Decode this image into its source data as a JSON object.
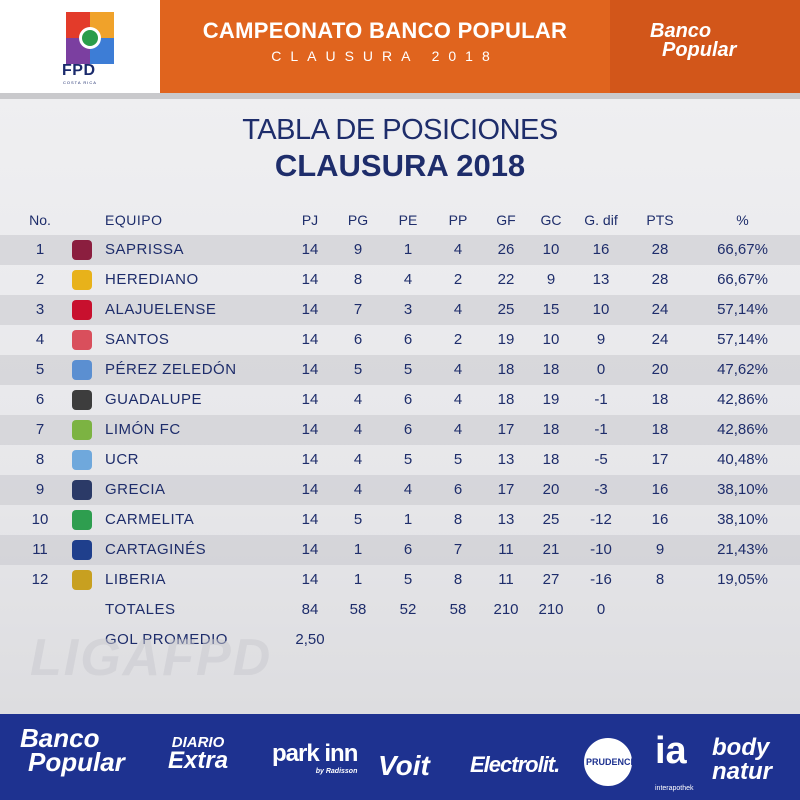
{
  "header": {
    "fpd_logo": "FPD",
    "fpd_sub": "COSTA RICA",
    "title": "CAMPEONATO BANCO POPULAR",
    "subtitle": "CLAUSURA 2018",
    "sponsor_logo_line1": "Banco",
    "sponsor_logo_line2": "Popular",
    "colors": {
      "left": "#ffffff",
      "mid": "#e0641e",
      "right": "#d2561a"
    }
  },
  "titles": {
    "line1": "TABLA DE POSICIONES",
    "line2": "CLAUSURA 2018"
  },
  "table": {
    "headers": {
      "no": "No.",
      "team": "EQUIPO",
      "pj": "PJ",
      "pg": "PG",
      "pe": "PE",
      "pp": "PP",
      "gf": "GF",
      "gc": "GC",
      "gd": "G. dif",
      "pts": "PTS",
      "pct": "%"
    },
    "rows": [
      {
        "no": "1",
        "team": "SAPRISSA",
        "pj": "14",
        "pg": "9",
        "pe": "1",
        "pp": "4",
        "gf": "26",
        "gc": "10",
        "gd": "16",
        "pts": "28",
        "pct": "66,67%",
        "crest_color": "#8b1e3f"
      },
      {
        "no": "2",
        "team": "HEREDIANO",
        "pj": "14",
        "pg": "8",
        "pe": "4",
        "pp": "2",
        "gf": "22",
        "gc": "9",
        "gd": "13",
        "pts": "28",
        "pct": "66,67%",
        "crest_color": "#e8b21a"
      },
      {
        "no": "3",
        "team": "ALAJUELENSE",
        "pj": "14",
        "pg": "7",
        "pe": "3",
        "pp": "4",
        "gf": "25",
        "gc": "15",
        "gd": "10",
        "pts": "24",
        "pct": "57,14%",
        "crest_color": "#c8102e"
      },
      {
        "no": "4",
        "team": "SANTOS",
        "pj": "14",
        "pg": "6",
        "pe": "6",
        "pp": "2",
        "gf": "19",
        "gc": "10",
        "gd": "9",
        "pts": "24",
        "pct": "57,14%",
        "crest_color": "#d94f5c"
      },
      {
        "no": "5",
        "team": "PÉREZ ZELEDÓN",
        "pj": "14",
        "pg": "5",
        "pe": "5",
        "pp": "4",
        "gf": "18",
        "gc": "18",
        "gd": "0",
        "pts": "20",
        "pct": "47,62%",
        "crest_color": "#5b8fd1"
      },
      {
        "no": "6",
        "team": "GUADALUPE",
        "pj": "14",
        "pg": "4",
        "pe": "6",
        "pp": "4",
        "gf": "18",
        "gc": "19",
        "gd": "-1",
        "pts": "18",
        "pct": "42,86%",
        "crest_color": "#3d3d3d"
      },
      {
        "no": "7",
        "team": "LIMÓN FC",
        "pj": "14",
        "pg": "4",
        "pe": "6",
        "pp": "4",
        "gf": "17",
        "gc": "18",
        "gd": "-1",
        "pts": "18",
        "pct": "42,86%",
        "crest_color": "#7cb342"
      },
      {
        "no": "8",
        "team": "UCR",
        "pj": "14",
        "pg": "4",
        "pe": "5",
        "pp": "5",
        "gf": "13",
        "gc": "18",
        "gd": "-5",
        "pts": "17",
        "pct": "40,48%",
        "crest_color": "#6fa8dc"
      },
      {
        "no": "9",
        "team": "GRECIA",
        "pj": "14",
        "pg": "4",
        "pe": "4",
        "pp": "6",
        "gf": "17",
        "gc": "20",
        "gd": "-3",
        "pts": "16",
        "pct": "38,10%",
        "crest_color": "#2b3a67"
      },
      {
        "no": "10",
        "team": "CARMELITA",
        "pj": "14",
        "pg": "5",
        "pe": "1",
        "pp": "8",
        "gf": "13",
        "gc": "25",
        "gd": "-12",
        "pts": "16",
        "pct": "38,10%",
        "crest_color": "#2e9e4f"
      },
      {
        "no": "11",
        "team": "CARTAGINÉS",
        "pj": "14",
        "pg": "1",
        "pe": "6",
        "pp": "7",
        "gf": "11",
        "gc": "21",
        "gd": "-10",
        "pts": "9",
        "pct": "21,43%",
        "crest_color": "#1f3f8c"
      },
      {
        "no": "12",
        "team": "LIBERIA",
        "pj": "14",
        "pg": "1",
        "pe": "5",
        "pp": "8",
        "gf": "11",
        "gc": "27",
        "gd": "-16",
        "pts": "8",
        "pct": "19,05%",
        "crest_color": "#c8a020"
      }
    ],
    "totals": {
      "label": "TOTALES",
      "pj": "84",
      "pg": "58",
      "pe": "52",
      "pp": "58",
      "gf": "210",
      "gc": "210",
      "gd": "0"
    },
    "average": {
      "label": "GOL PROMEDIO",
      "value": "2,50"
    }
  },
  "watermark": "LIGAFPD",
  "sponsors": {
    "banco_popular_1": "Banco",
    "banco_popular_2": "Popular",
    "diario_1": "DIARIO",
    "diario_2": "Extra",
    "park_inn": "park inn",
    "park_inn_sub": "by Radisson",
    "voit": "Voit",
    "electrolit": "Electrolit.",
    "prudence": "PRUDENCE",
    "ia": "ia",
    "ia_sub": "interapothek",
    "body_natur_1": "body",
    "body_natur_2": "natur"
  }
}
